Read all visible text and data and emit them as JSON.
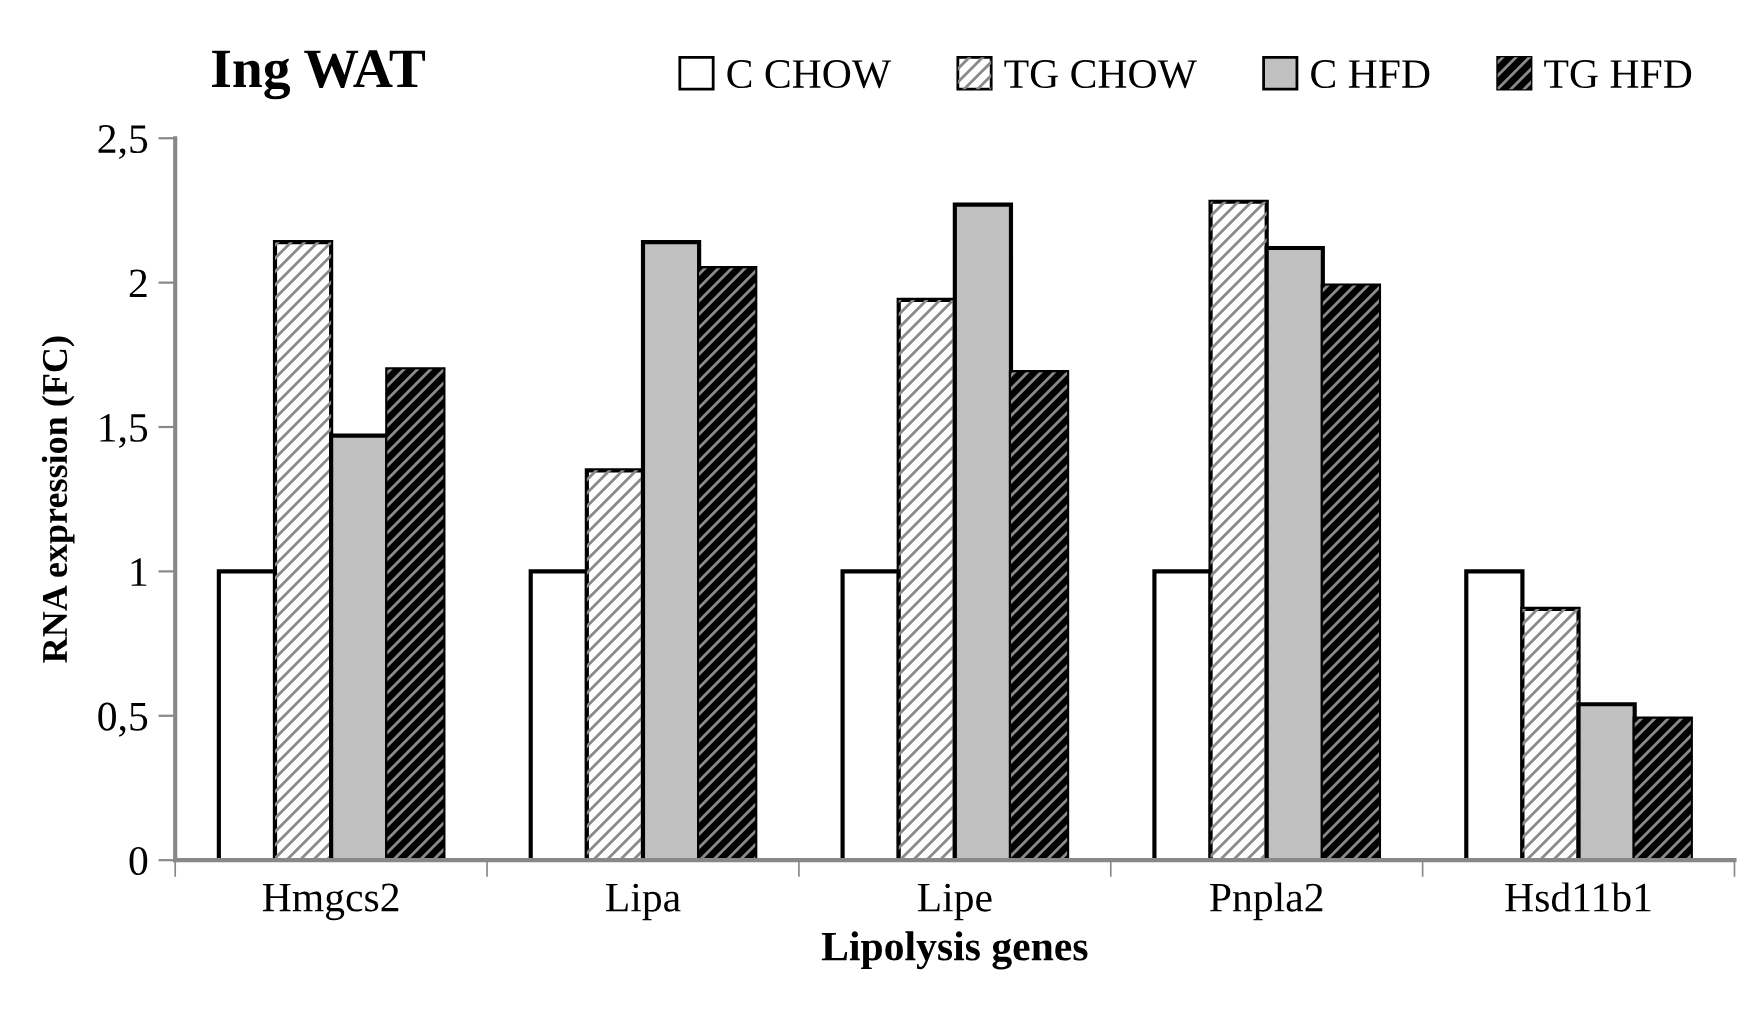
{
  "chart_data": {
    "type": "bar",
    "title": "Ing WAT",
    "xlabel": "Lipolysis genes",
    "ylabel": "RNA expression (FC)",
    "categories": [
      "Hmgcs2",
      "Lipa",
      "Lipe",
      "Pnpla2",
      "Hsd11b1"
    ],
    "series": [
      {
        "name": "C CHOW",
        "color": "#ffffff",
        "values": [
          1,
          1,
          1,
          1,
          1
        ]
      },
      {
        "name": "TG CHOW",
        "color": "#ffffff",
        "values": [
          2.14,
          1.35,
          1.94,
          2.28,
          0.87
        ]
      },
      {
        "name": "C HFD",
        "color": "#c0c0c0",
        "values": [
          1.47,
          2.14,
          2.27,
          2.12,
          0.54
        ]
      },
      {
        "name": "TG HFD",
        "color": "#000000",
        "values": [
          1.7,
          2.05,
          1.69,
          1.99,
          0.49
        ]
      }
    ],
    "ylim": [
      0,
      2.5
    ],
    "yticks": [
      {
        "value": 0,
        "label": "0"
      },
      {
        "value": 0.5,
        "label": "0,5"
      },
      {
        "value": 1,
        "label": "1"
      },
      {
        "value": 1.5,
        "label": "1,5"
      },
      {
        "value": 2,
        "label": "2"
      },
      {
        "value": 2.5,
        "label": "2,5"
      }
    ],
    "legend": "top right",
    "grid": false
  }
}
